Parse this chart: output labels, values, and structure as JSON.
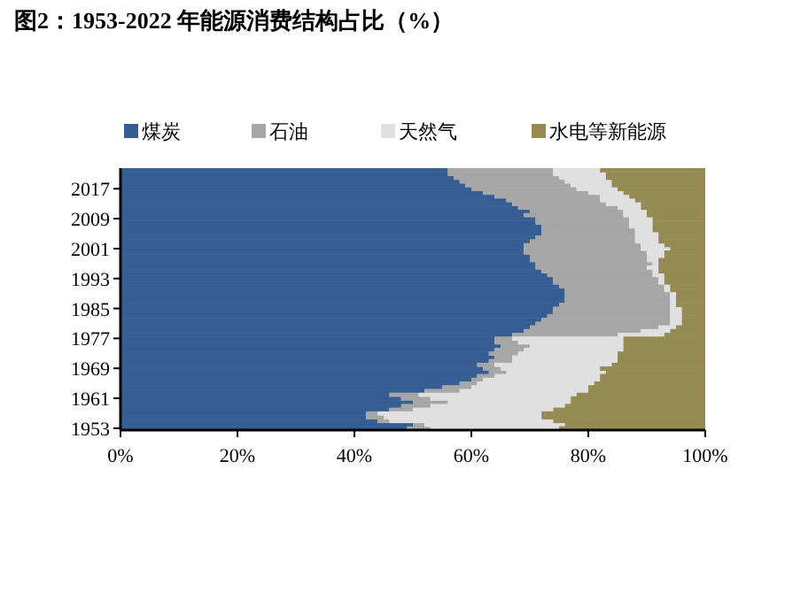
{
  "chart_data": {
    "type": "bar",
    "orientation": "horizontal",
    "stacked": true,
    "title": "图2：1953-2022 年能源消费结构占比（%）",
    "categories": [
      null,
      null,
      null,
      null,
      null,
      "2017",
      null,
      null,
      null,
      null,
      null,
      null,
      null,
      "2009",
      null,
      null,
      null,
      null,
      null,
      null,
      null,
      "2001",
      null,
      null,
      null,
      null,
      null,
      null,
      null,
      "1993",
      null,
      null,
      null,
      null,
      null,
      null,
      null,
      "1985",
      null,
      null,
      null,
      null,
      null,
      null,
      null,
      "1977",
      null,
      null,
      null,
      null,
      null,
      null,
      null,
      "1969",
      null,
      null,
      null,
      null,
      null,
      null,
      null,
      "1961",
      null,
      null,
      null,
      null,
      null,
      null,
      null,
      "1953"
    ],
    "series": [
      {
        "name": "煤炭",
        "color": "#365e92",
        "values": [
          56,
          56,
          57,
          58,
          59,
          60,
          62,
          64,
          66,
          67,
          68,
          70,
          69,
          71,
          71,
          72,
          72,
          72,
          71,
          70,
          69,
          69,
          69,
          70,
          70,
          71,
          71,
          72,
          73,
          74,
          74,
          75,
          76,
          76,
          76,
          76,
          75,
          74,
          74,
          73,
          72,
          71,
          70,
          69,
          67,
          64,
          64,
          65,
          64,
          63,
          64,
          63,
          61,
          62,
          63,
          61,
          60,
          58,
          55,
          52,
          46,
          48,
          50,
          48,
          46,
          42,
          42,
          44,
          50,
          49
        ]
      },
      {
        "name": "石油",
        "color": "#a6a6a6",
        "values": [
          18,
          18,
          18,
          18,
          18,
          18,
          18,
          18,
          16,
          16,
          17,
          16,
          17,
          16,
          16,
          15,
          16,
          16,
          17,
          18,
          20,
          20,
          21,
          20,
          20,
          20,
          19,
          19,
          18,
          18,
          18,
          18,
          17,
          18,
          18,
          18,
          19,
          20,
          20,
          21,
          22,
          23,
          22,
          20,
          18,
          3,
          4,
          5,
          5,
          5,
          3,
          4,
          3,
          3,
          3,
          3,
          2,
          3,
          5,
          6,
          5,
          5,
          6,
          5,
          4,
          2,
          3,
          2,
          2,
          4
        ]
      },
      {
        "name": "天然气",
        "color": "#e0e0e0",
        "values": [
          8,
          9,
          8,
          8,
          7,
          7,
          6,
          5,
          6,
          6,
          4,
          4,
          4,
          4,
          4,
          4,
          3,
          4,
          4,
          4,
          4,
          5,
          3,
          3,
          2,
          1,
          2,
          1,
          2,
          1,
          1,
          1,
          1,
          1,
          1,
          1,
          1,
          2,
          2,
          2,
          2,
          2,
          3,
          5,
          8,
          19,
          18,
          16,
          17,
          17,
          18,
          18,
          20,
          17,
          17,
          18,
          20,
          20,
          20,
          22,
          27,
          24,
          21,
          23,
          24,
          28,
          27,
          28,
          24,
          22
        ]
      },
      {
        "name": "水电等新能源",
        "color": "#958a52",
        "values": [
          18,
          17,
          17,
          16,
          16,
          15,
          14,
          13,
          12,
          11,
          11,
          10,
          10,
          9,
          9,
          9,
          9,
          8,
          8,
          8,
          7,
          6,
          7,
          7,
          8,
          8,
          8,
          8,
          7,
          7,
          7,
          6,
          6,
          5,
          5,
          5,
          5,
          4,
          4,
          4,
          4,
          4,
          5,
          6,
          7,
          14,
          14,
          14,
          14,
          15,
          15,
          15,
          16,
          18,
          17,
          18,
          18,
          19,
          20,
          20,
          22,
          23,
          23,
          24,
          26,
          28,
          28,
          26,
          24,
          25
        ]
      }
    ],
    "xlim": [
      0,
      100
    ],
    "xticks": [
      {
        "value": 0,
        "label": "0%"
      },
      {
        "value": 20,
        "label": "20%"
      },
      {
        "value": 40,
        "label": "40%"
      },
      {
        "value": 60,
        "label": "60%"
      },
      {
        "value": 80,
        "label": "80%"
      },
      {
        "value": 100,
        "label": "100%"
      }
    ],
    "legend": "top",
    "grid": false
  }
}
